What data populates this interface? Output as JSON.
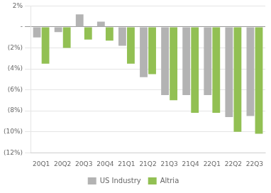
{
  "chart_data": {
    "type": "bar",
    "categories": [
      "20Q1",
      "20Q2",
      "20Q3",
      "20Q4",
      "21Q1",
      "21Q2",
      "21Q3",
      "21Q4",
      "22Q1",
      "22Q2",
      "22Q3"
    ],
    "series": [
      {
        "name": "US Industry",
        "color": "#b3b3b3",
        "values": [
          -1.0,
          -0.5,
          1.2,
          0.5,
          -1.8,
          -4.8,
          -6.5,
          -6.5,
          -6.5,
          -8.6,
          -8.5
        ]
      },
      {
        "name": "Altria",
        "color": "#92c053",
        "values": [
          -3.5,
          -2.0,
          -1.2,
          -1.3,
          -3.5,
          -4.5,
          -7.0,
          -8.2,
          -8.2,
          -10.0,
          -10.2
        ]
      }
    ],
    "ylim": [
      -12,
      2
    ],
    "yticks": [
      {
        "value": 2,
        "label": "2%"
      },
      {
        "value": 0,
        "label": "-"
      },
      {
        "value": -2,
        "label": "(2%)"
      },
      {
        "value": -4,
        "label": "(4%)"
      },
      {
        "value": -6,
        "label": "(6%)"
      },
      {
        "value": -8,
        "label": "(8%)"
      },
      {
        "value": -10,
        "label": "(10%)"
      },
      {
        "value": -12,
        "label": "(12%)"
      }
    ],
    "grid": true,
    "legend": "bottom"
  }
}
